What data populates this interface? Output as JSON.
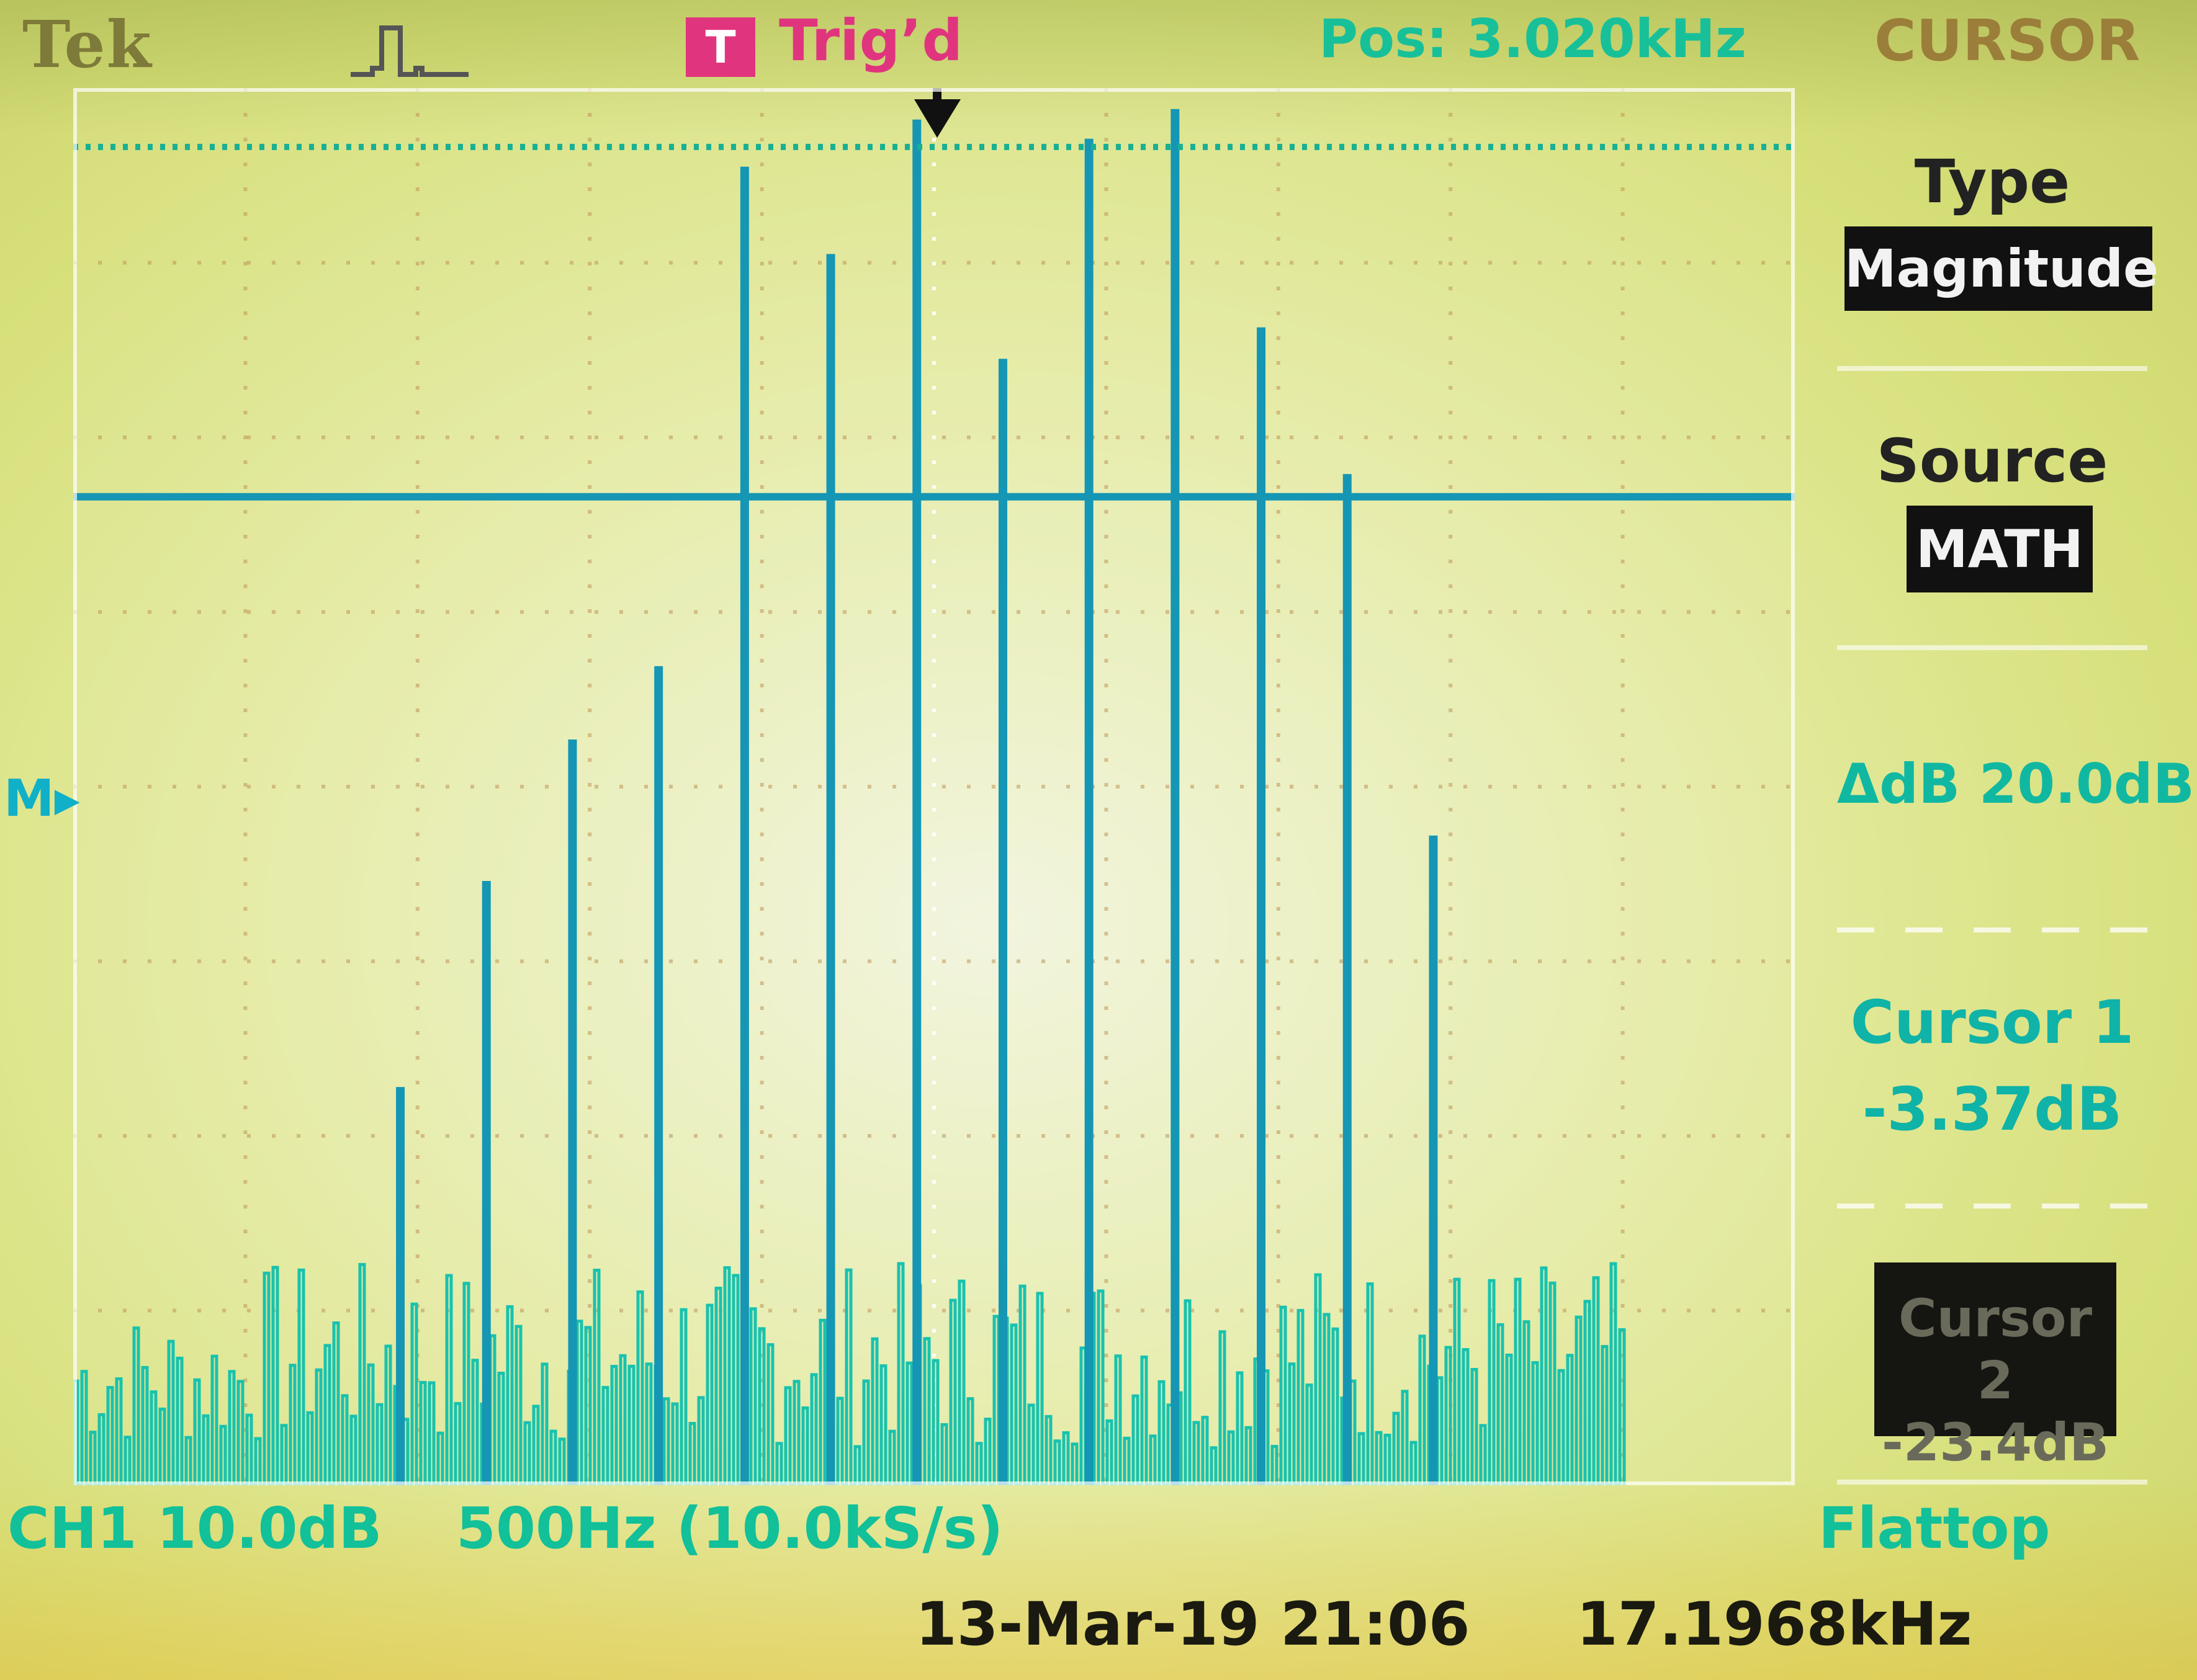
{
  "header": {
    "brand": "Tek",
    "trigger_badge": "T",
    "trigger_status": "Trig’d",
    "position_label": "Pos: 3.020kHz",
    "menu_title": "CURSOR"
  },
  "side_menu": {
    "type_label": "Type",
    "type_value": "Magnitude",
    "source_label": "Source",
    "source_value": "MATH",
    "delta_readout": "ΔdB 20.0dB",
    "cursor1_label": "Cursor 1",
    "cursor1_value": "-3.37dB",
    "cursor2_label": "Cursor 2",
    "cursor2_value": "-23.4dB"
  },
  "status_bar": {
    "channel": "CH1 10.0dB",
    "timebase": "500Hz (10.0kS/s)",
    "window": "Flattop",
    "datetime": "13-Mar-19 21:06",
    "frequency": "17.1968kHz"
  },
  "ground_marker": "M",
  "colors": {
    "trace": "#1596b4",
    "trace_noise": "#18c2ae",
    "cursor_dotted": "#18b093",
    "trigger_pink": "#e0357e",
    "readout_teal": "#10b8a2"
  },
  "chart_data": {
    "type": "bar",
    "description_units": "dB (relative), x in kHz, 0.5 kHz/div from 0 to 5 kHz",
    "xlim": [
      0,
      5
    ],
    "ylim": [
      -80,
      0
    ],
    "cursor1_db": -3.37,
    "cursor2_db": -23.4,
    "series": [
      {
        "name": "",
        "x": [
          0.95,
          1.2,
          1.45,
          1.7,
          1.95,
          2.2,
          2.45,
          2.7,
          2.95,
          3.2,
          3.45,
          3.7,
          3.95
        ],
        "values": [
          -57.2,
          -45.4,
          -37.3,
          -33.1,
          -4.5,
          -9.5,
          -1.8,
          -15.5,
          -2.9,
          -1.2,
          -13.7,
          -22.1,
          -42.8
        ]
      }
    ]
  }
}
